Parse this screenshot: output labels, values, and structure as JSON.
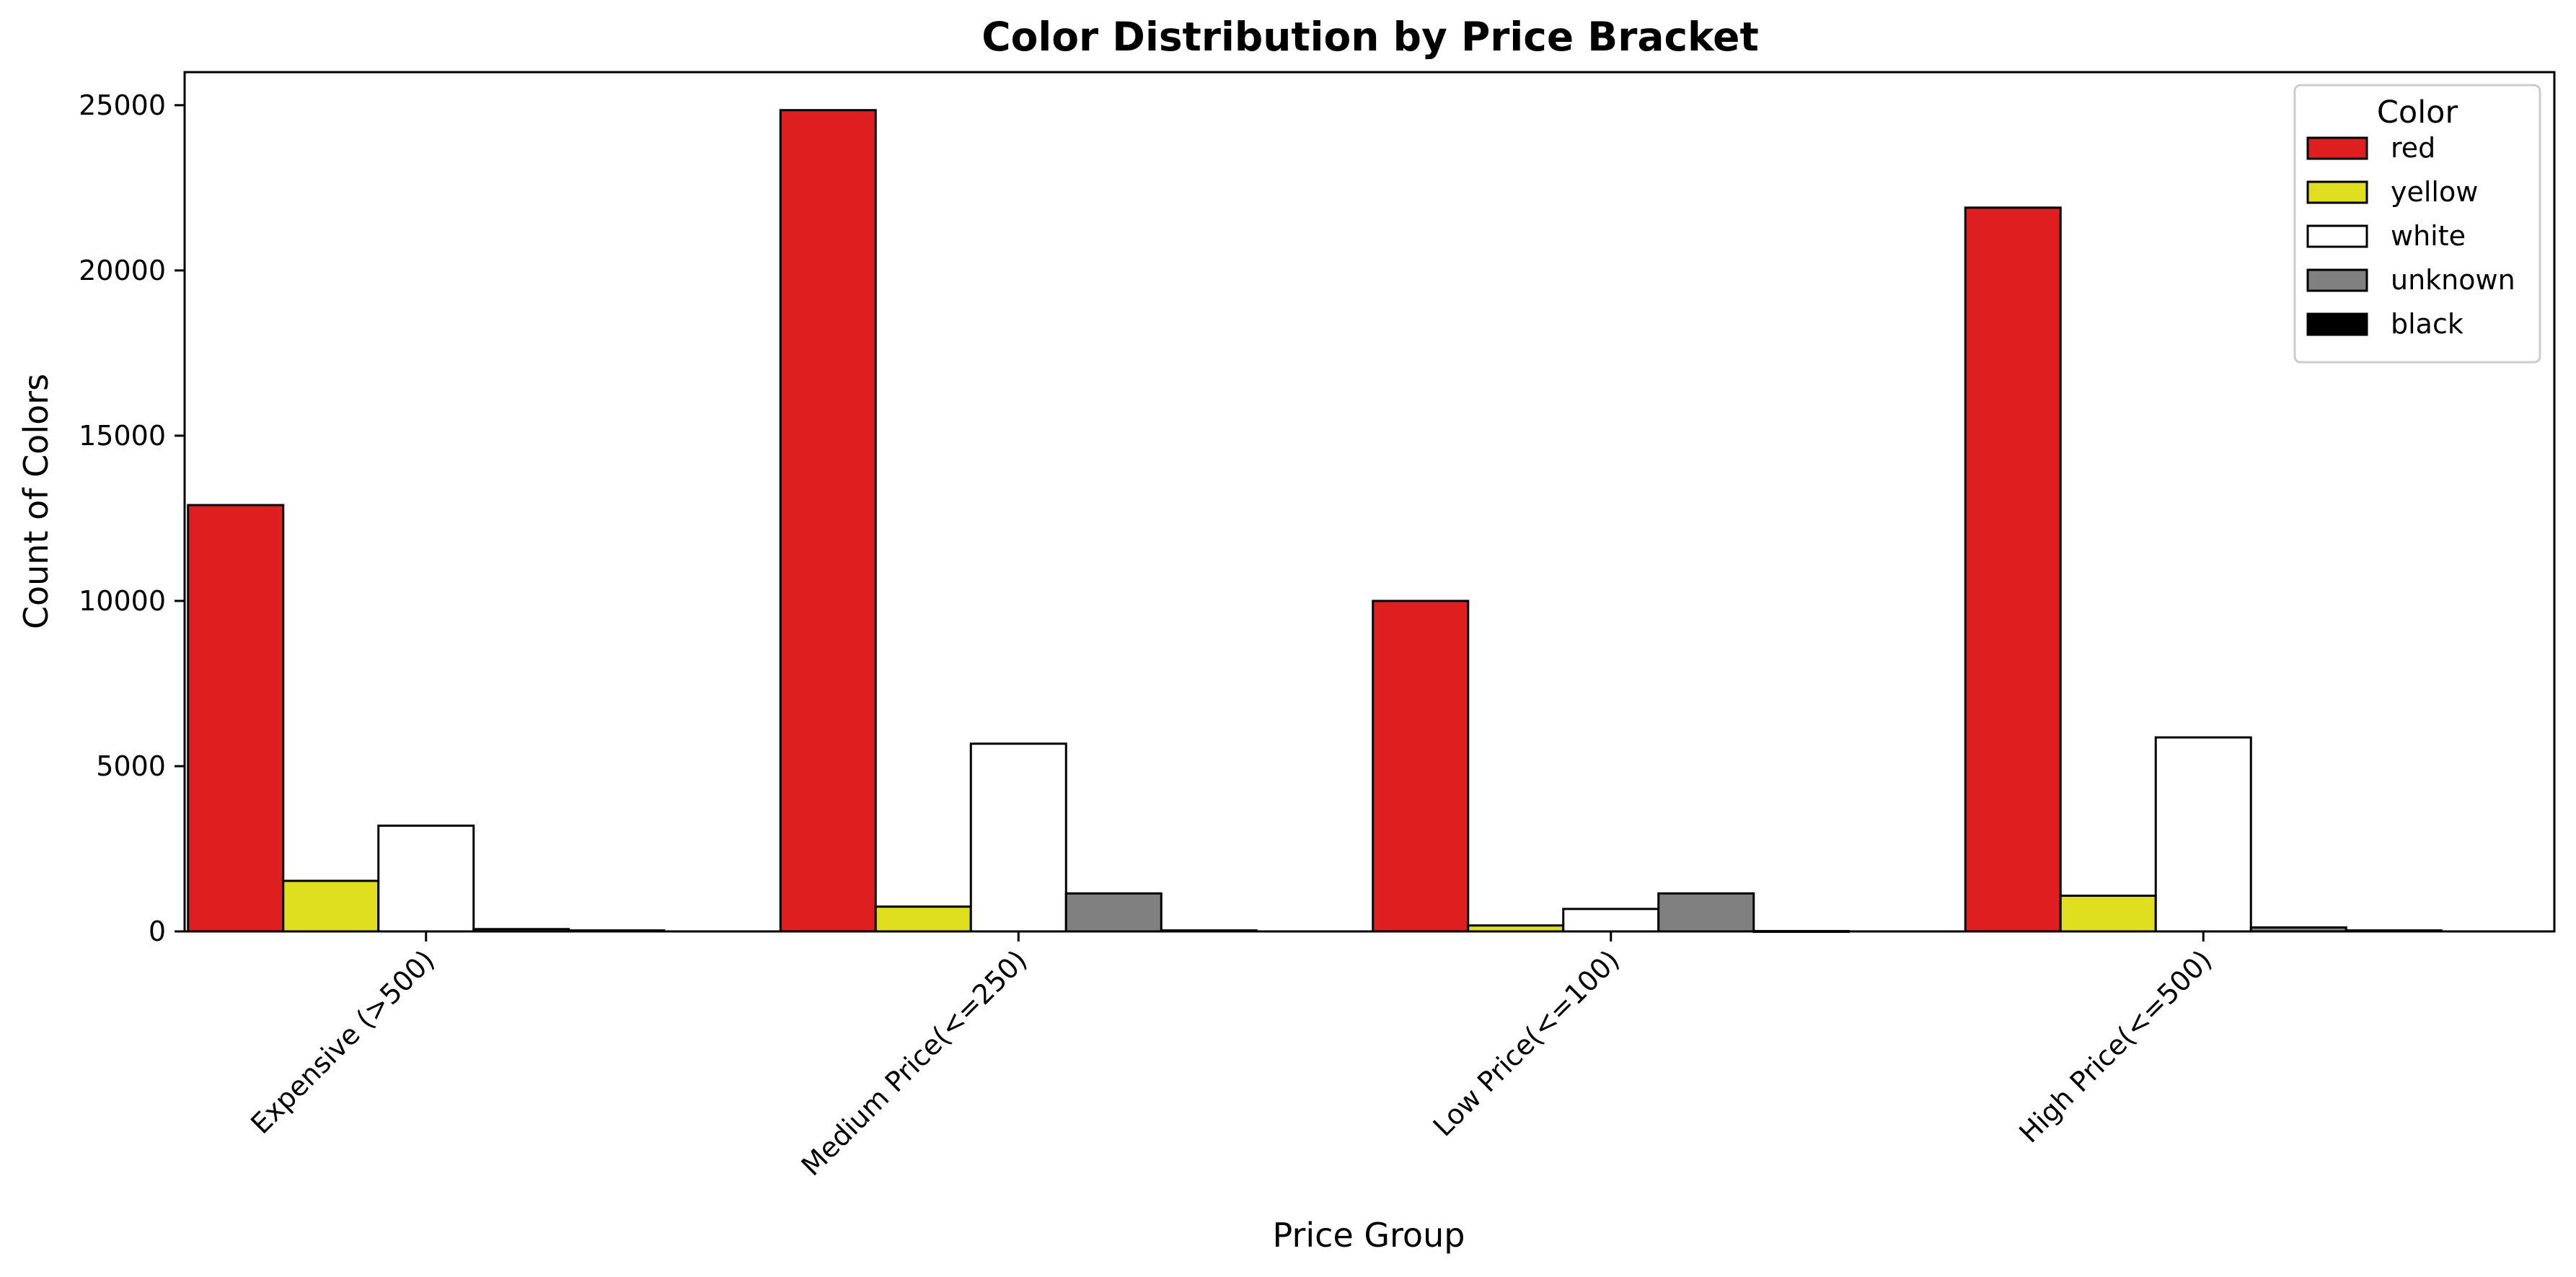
{
  "chart_data": {
    "type": "bar",
    "title": "Color Distribution by Price Bracket",
    "xlabel": "Price Group",
    "ylabel": "Count of Colors",
    "categories": [
      "Expensive (>500)",
      "Medium Price(<=250)",
      "Low Price(<=100)",
      "High Price(<=500)"
    ],
    "series": [
      {
        "name": "red",
        "color": "#df1f1f",
        "values": [
          12900,
          24850,
          10000,
          21900
        ]
      },
      {
        "name": "yellow",
        "color": "#dfdf1f",
        "values": [
          1530,
          750,
          180,
          1080
        ]
      },
      {
        "name": "white",
        "color": "#ffffff",
        "values": [
          3200,
          5680,
          680,
          5870
        ]
      },
      {
        "name": "unknown",
        "color": "#808080",
        "values": [
          70,
          1150,
          1150,
          120
        ]
      },
      {
        "name": "black",
        "color": "#000000",
        "values": [
          30,
          30,
          10,
          30
        ]
      }
    ],
    "ylim": [
      0,
      26000
    ],
    "yticks": [
      0,
      5000,
      10000,
      15000,
      20000,
      25000
    ],
    "ytick_labels": [
      "0",
      "5000",
      "10000",
      "15000",
      "20000",
      "25000"
    ],
    "legend": {
      "title": "Color",
      "position": "top-right"
    },
    "grid": false
  }
}
